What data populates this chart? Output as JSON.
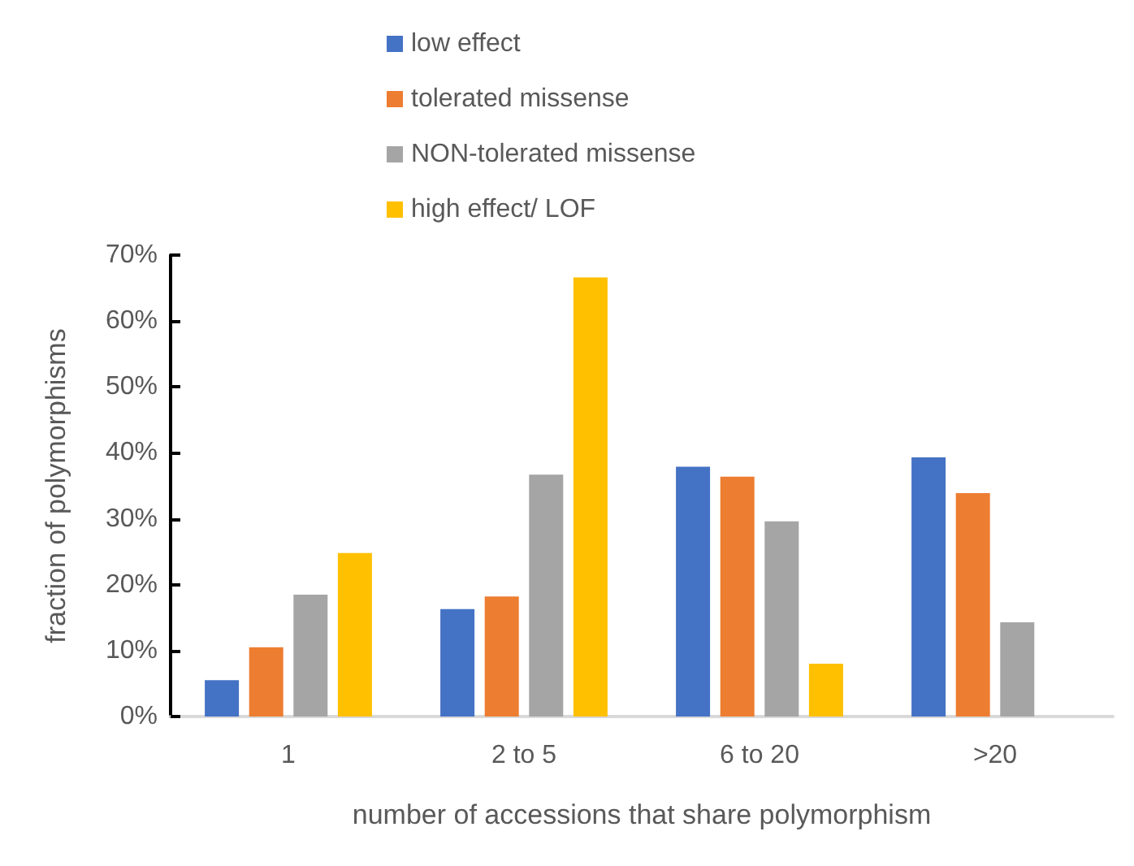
{
  "chart_data": {
    "type": "bar",
    "xlabel": "number of accessions that share polymorphism",
    "ylabel": "fraction of polymorphisms",
    "categories": [
      "1",
      "2 to 5",
      "6 to 20",
      ">20"
    ],
    "series": [
      {
        "name": "low effect",
        "color": "#4472c4",
        "values": [
          5.5,
          16.3,
          37.9,
          39.3
        ]
      },
      {
        "name": "tolerated missense",
        "color": "#ed7d31",
        "values": [
          10.5,
          18.2,
          36.4,
          33.9
        ]
      },
      {
        "name": "NON-tolerated missense",
        "color": "#a5a5a5",
        "values": [
          18.5,
          36.7,
          29.6,
          14.3
        ]
      },
      {
        "name": "high effect/ LOF",
        "color": "#ffc000",
        "values": [
          24.8,
          66.6,
          8.0,
          0
        ]
      }
    ],
    "ylim": [
      0,
      70
    ],
    "yticks": [
      {
        "value": 0,
        "label": "0%"
      },
      {
        "value": 10,
        "label": "10%"
      },
      {
        "value": 20,
        "label": "20%"
      },
      {
        "value": 30,
        "label": "30%"
      },
      {
        "value": 40,
        "label": "40%"
      },
      {
        "value": 50,
        "label": "50%"
      },
      {
        "value": 60,
        "label": "60%"
      },
      {
        "value": 70,
        "label": "70%"
      }
    ],
    "grid": false,
    "legend": "top"
  }
}
